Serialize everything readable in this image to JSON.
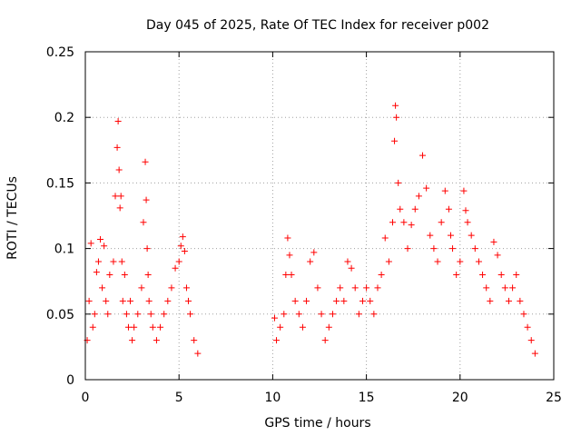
{
  "chart_data": {
    "type": "scatter",
    "title": "Day 045 of 2025, Rate Of TEC Index for receiver p002",
    "xlabel": "GPS time / hours",
    "ylabel": "ROTI / TECUs",
    "xlim": [
      0,
      25
    ],
    "ylim": [
      0,
      0.25
    ],
    "xticks": [
      0,
      5,
      10,
      15,
      20,
      25
    ],
    "yticks": [
      0,
      0.05,
      0.1,
      0.15,
      0.2,
      0.25
    ],
    "ytick_labels": [
      "0",
      "0.05",
      "0.1",
      "0.15",
      "0.2",
      "0.25"
    ],
    "grid": true,
    "marker": "+",
    "color": "#ff0000",
    "data_gap_hours": [
      6.1,
      10.0
    ],
    "series": [
      {
        "name": "ROTI",
        "x": [
          0.1,
          0.2,
          0.3,
          0.4,
          0.5,
          0.6,
          0.7,
          0.8,
          0.9,
          1.0,
          1.1,
          1.2,
          1.3,
          1.5,
          1.6,
          1.7,
          1.75,
          1.8,
          1.85,
          1.9,
          1.95,
          2.0,
          2.1,
          2.2,
          2.3,
          2.4,
          2.5,
          2.6,
          2.8,
          3.0,
          3.1,
          3.2,
          3.25,
          3.3,
          3.35,
          3.4,
          3.5,
          3.6,
          3.8,
          4.0,
          4.2,
          4.4,
          4.6,
          4.8,
          5.0,
          5.1,
          5.2,
          5.3,
          5.4,
          5.5,
          5.6,
          5.8,
          6.0,
          10.1,
          10.2,
          10.4,
          10.6,
          10.7,
          10.8,
          10.9,
          11.0,
          11.2,
          11.4,
          11.6,
          11.8,
          12.0,
          12.2,
          12.4,
          12.6,
          12.8,
          13.0,
          13.2,
          13.4,
          13.6,
          13.8,
          14.0,
          14.2,
          14.4,
          14.6,
          14.8,
          15.0,
          15.2,
          15.4,
          15.6,
          15.8,
          16.0,
          16.2,
          16.4,
          16.5,
          16.55,
          16.6,
          16.7,
          16.8,
          17.0,
          17.2,
          17.4,
          17.6,
          17.8,
          18.0,
          18.2,
          18.4,
          18.6,
          18.8,
          19.0,
          19.2,
          19.4,
          19.5,
          19.6,
          19.8,
          20.0,
          20.2,
          20.3,
          20.4,
          20.6,
          20.8,
          21.0,
          21.2,
          21.4,
          21.6,
          21.8,
          22.0,
          22.2,
          22.4,
          22.6,
          22.8,
          23.0,
          23.2,
          23.4,
          23.6,
          23.8,
          24.0
        ],
        "y": [
          0.03,
          0.06,
          0.104,
          0.04,
          0.05,
          0.082,
          0.09,
          0.107,
          0.07,
          0.102,
          0.06,
          0.05,
          0.08,
          0.09,
          0.14,
          0.177,
          0.197,
          0.16,
          0.131,
          0.14,
          0.09,
          0.06,
          0.08,
          0.05,
          0.04,
          0.06,
          0.03,
          0.04,
          0.05,
          0.07,
          0.12,
          0.166,
          0.137,
          0.1,
          0.08,
          0.06,
          0.05,
          0.04,
          0.03,
          0.04,
          0.05,
          0.06,
          0.07,
          0.085,
          0.09,
          0.102,
          0.109,
          0.098,
          0.07,
          0.06,
          0.05,
          0.03,
          0.02,
          0.047,
          0.03,
          0.04,
          0.05,
          0.08,
          0.108,
          0.095,
          0.08,
          0.06,
          0.05,
          0.04,
          0.06,
          0.09,
          0.097,
          0.07,
          0.05,
          0.03,
          0.04,
          0.05,
          0.06,
          0.07,
          0.06,
          0.09,
          0.085,
          0.07,
          0.05,
          0.06,
          0.07,
          0.06,
          0.05,
          0.07,
          0.08,
          0.108,
          0.09,
          0.12,
          0.182,
          0.209,
          0.2,
          0.15,
          0.13,
          0.12,
          0.1,
          0.118,
          0.13,
          0.14,
          0.171,
          0.146,
          0.11,
          0.1,
          0.09,
          0.12,
          0.144,
          0.13,
          0.11,
          0.1,
          0.08,
          0.09,
          0.144,
          0.129,
          0.12,
          0.11,
          0.1,
          0.09,
          0.08,
          0.07,
          0.06,
          0.105,
          0.095,
          0.08,
          0.07,
          0.06,
          0.07,
          0.08,
          0.06,
          0.05,
          0.04,
          0.03,
          0.02
        ]
      }
    ]
  }
}
